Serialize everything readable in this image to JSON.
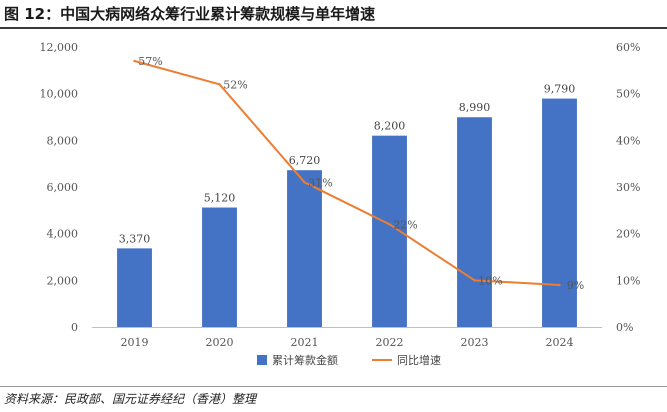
{
  "figure": {
    "title": "图 12：中国大病网络众筹行业累计筹款规模与单年增速",
    "source": "资料来源：民政部、国元证券经纪（香港）整理"
  },
  "colors": {
    "bar": "#4472C4",
    "line": "#ED7D31",
    "axis": "#bfbfbf"
  },
  "chart_data": {
    "type": "bar",
    "categories": [
      "2019",
      "2020",
      "2021",
      "2022",
      "2023",
      "2024"
    ],
    "series": [
      {
        "name": "累计筹款金额",
        "type": "bar",
        "axis": "left",
        "values": [
          3370,
          5120,
          6720,
          8200,
          8990,
          9790
        ],
        "labels": [
          "3,370",
          "5,120",
          "6,720",
          "8,200",
          "8,990",
          "9,790"
        ]
      },
      {
        "name": "同比增速",
        "type": "line",
        "axis": "right",
        "values": [
          57,
          52,
          31,
          22,
          10,
          9
        ],
        "labels": [
          "57%",
          "52%",
          "31%",
          "22%",
          "10%",
          "9%"
        ]
      }
    ],
    "y_left": {
      "lim": [
        0,
        12000
      ],
      "ticks": [
        0,
        2000,
        4000,
        6000,
        8000,
        10000,
        12000
      ],
      "tick_labels": [
        "0",
        "2,000",
        "4,000",
        "6,000",
        "8,000",
        "10,000",
        "12,000"
      ]
    },
    "y_right": {
      "lim": [
        0,
        60
      ],
      "ticks": [
        0,
        10,
        20,
        30,
        40,
        50,
        60
      ],
      "tick_labels": [
        "0%",
        "10%",
        "20%",
        "30%",
        "40%",
        "50%",
        "60%"
      ]
    },
    "legend_position": "bottom-center"
  }
}
